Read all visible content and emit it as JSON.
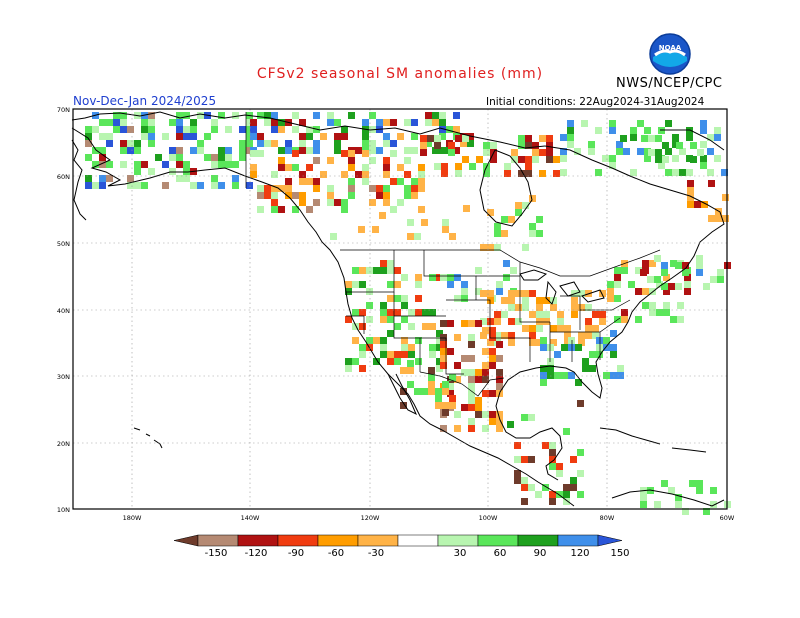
{
  "title": "CFSv2 seasonal SM anomalies (mm)",
  "agency": "NWS/NCEP/CPC",
  "logo_text": "NOAA",
  "period": "Nov-Dec-Jan 2024/2025",
  "initial_conditions": "Initial conditions: 22Aug2024-31Aug2024",
  "lat_labels": [
    "70N",
    "60N",
    "50N",
    "40N",
    "30N",
    "20N",
    "10N"
  ],
  "lon_labels": [
    "180W",
    "140W",
    "120W",
    "100W",
    "80W",
    "60W"
  ],
  "colorbar": {
    "labels": [
      "-150",
      "-120",
      "-90",
      "-60",
      "-30",
      "30",
      "60",
      "90",
      "120",
      "150"
    ],
    "colors": [
      "#6e3b2b",
      "#b58a73",
      "#b01212",
      "#f03c10",
      "#ff9d00",
      "#ffb347",
      "#ffffff",
      "#b8f5b0",
      "#5ae65a",
      "#1ea01e",
      "#3f8fea",
      "#2a55d8"
    ]
  }
}
